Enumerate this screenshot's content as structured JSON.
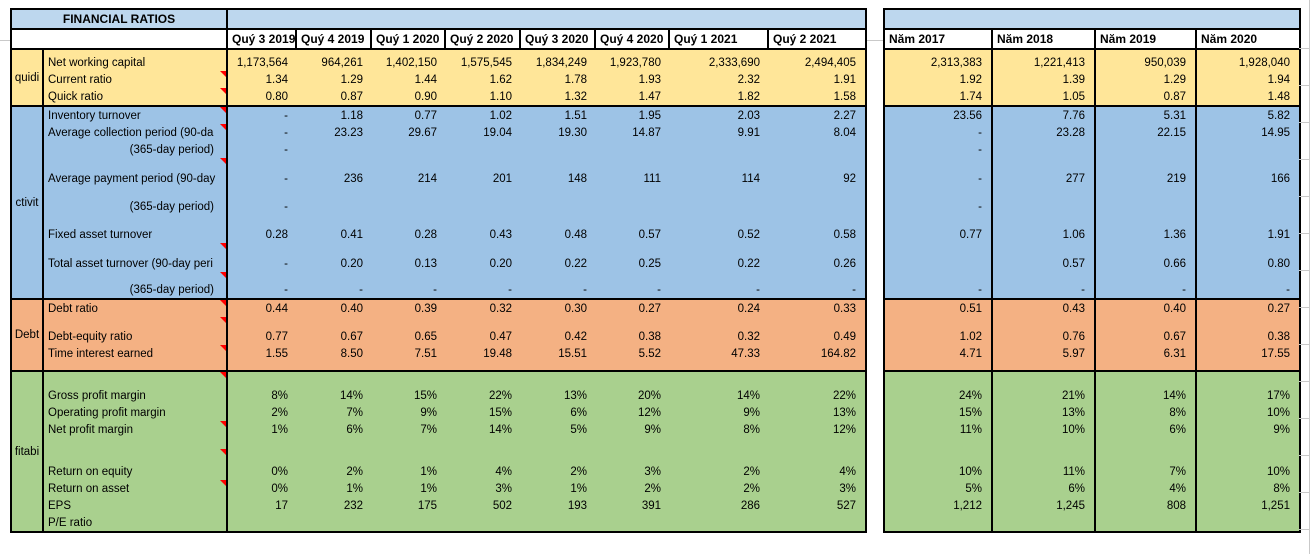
{
  "title": "FINANCIAL RATIOS",
  "colors": {
    "title_bar": "#BDD7EE",
    "yellow": "#FFE699",
    "blue": "#9DC3E6",
    "orange": "#F4B183",
    "green": "#A9D08E",
    "comment_indicator": "#FF0000",
    "gridline": "#C9C9C9",
    "border": "#000000"
  },
  "quarter_columns": [
    "Quý 3 2019",
    "Quý 4 2019",
    "Quý 1 2020",
    "Quý 2 2020",
    "Quý 3 2020",
    "Quý 4 2020",
    "Quý 1 2021",
    "Quý 2 2021"
  ],
  "year_columns": [
    "Năm 2017",
    "Năm 2018",
    "Năm 2019",
    "Năm 2020"
  ],
  "sections": [
    {
      "id": "liquidity",
      "group": "quidi",
      "color": "yellow",
      "rows": [
        {
          "label": "",
          "h": 4
        },
        {
          "label": "Net working capital",
          "h": 17,
          "q": [
            "1,173,564",
            "964,261",
            "1,402,150",
            "1,575,545",
            "1,834,249",
            "1,923,780",
            "2,333,690",
            "2,494,405"
          ],
          "y": [
            "2,313,383",
            "1,221,413",
            "950,039",
            "1,928,040"
          ]
        },
        {
          "label": "Current ratio",
          "h": 17,
          "comment": true,
          "q": [
            "1.34",
            "1.29",
            "1.44",
            "1.62",
            "1.78",
            "1.93",
            "2.32",
            "1.91"
          ],
          "y": [
            "1.92",
            "1.39",
            "1.29",
            "1.94"
          ]
        },
        {
          "label": "Quick ratio",
          "h": 17,
          "comment": true,
          "q": [
            "0.80",
            "0.87",
            "0.90",
            "1.10",
            "1.32",
            "1.47",
            "1.82",
            "1.58"
          ],
          "y": [
            "1.74",
            "1.05",
            "0.87",
            "1.48"
          ]
        }
      ]
    },
    {
      "id": "activity",
      "group": "ctivit",
      "color": "blue",
      "rows": [
        {
          "label": "Inventory turnover",
          "h": 17,
          "comment": true,
          "q": [
            "-",
            "1.18",
            "0.77",
            "1.02",
            "1.51",
            "1.95",
            "2.03",
            "2.27"
          ],
          "y": [
            "23.56",
            "7.76",
            "5.31",
            "5.82"
          ]
        },
        {
          "label": "Average collection period (90-da",
          "h": 17,
          "comment": true,
          "q": [
            "-",
            "23.23",
            "29.67",
            "19.04",
            "19.30",
            "14.87",
            "9.91",
            "8.04"
          ],
          "y": [
            "-",
            "23.28",
            "22.15",
            "14.95"
          ]
        },
        {
          "label": "(365-day period)",
          "h": 17,
          "indent": true,
          "q": [
            "-",
            "",
            "",
            "",
            "",
            "",
            "",
            ""
          ],
          "y": [
            "-",
            "",
            "",
            ""
          ]
        },
        {
          "label": "",
          "h": 11,
          "comment": true
        },
        {
          "label": "Average payment period (90-day",
          "h": 18,
          "q": [
            "-",
            "236",
            "214",
            "201",
            "148",
            "111",
            "114",
            "92"
          ],
          "y": [
            "-",
            "277",
            "219",
            "166"
          ]
        },
        {
          "label": "",
          "h": 11
        },
        {
          "label": "(365-day period)",
          "h": 17,
          "indent": true,
          "q": [
            "-",
            "",
            "",
            "",
            "",
            "",
            "",
            ""
          ],
          "y": [
            "-",
            "",
            "",
            ""
          ]
        },
        {
          "label": "",
          "h": 11
        },
        {
          "label": "Fixed asset turnover",
          "h": 17,
          "q": [
            "0.28",
            "0.41",
            "0.28",
            "0.43",
            "0.48",
            "0.57",
            "0.52",
            "0.58"
          ],
          "y": [
            "0.77",
            "1.06",
            "1.36",
            "1.91"
          ]
        },
        {
          "label": "",
          "h": 11,
          "comment": true
        },
        {
          "label": "Total asset turnover (90-day peri",
          "h": 18,
          "q": [
            "-",
            "0.20",
            "0.13",
            "0.20",
            "0.22",
            "0.25",
            "0.22",
            "0.26"
          ],
          "y": [
            "",
            "0.57",
            "0.66",
            "0.80"
          ]
        },
        {
          "label": "",
          "h": 10,
          "comment": true
        },
        {
          "label": "(365-day period)",
          "h": 16,
          "indent": true,
          "q": [
            "-",
            "-",
            "-",
            "-",
            "-",
            "-",
            "-",
            "-"
          ],
          "y": [
            "-",
            "-",
            "-",
            "-"
          ]
        }
      ]
    },
    {
      "id": "debt",
      "group": "Debt",
      "color": "orange",
      "rows": [
        {
          "label": "Debt ratio",
          "h": 17,
          "comment": true,
          "q": [
            "0.44",
            "0.40",
            "0.39",
            "0.32",
            "0.30",
            "0.27",
            "0.24",
            "0.33"
          ],
          "y": [
            "0.51",
            "0.43",
            "0.40",
            "0.27"
          ]
        },
        {
          "label": "",
          "h": 11,
          "comment": true
        },
        {
          "label": "Debt-equity ratio",
          "h": 17,
          "q": [
            "0.77",
            "0.67",
            "0.65",
            "0.47",
            "0.42",
            "0.38",
            "0.32",
            "0.49"
          ],
          "y": [
            "1.02",
            "0.76",
            "0.67",
            "0.38"
          ]
        },
        {
          "label": "Time interest earned",
          "h": 17,
          "comment": true,
          "q": [
            "1.55",
            "8.50",
            "7.51",
            "19.48",
            "15.51",
            "5.52",
            "47.33",
            "164.82"
          ],
          "y": [
            "4.71",
            "5.97",
            "6.31",
            "17.55"
          ]
        },
        {
          "label": "",
          "h": 8
        }
      ]
    },
    {
      "id": "profitability",
      "group": "fitabi",
      "color": "green",
      "rows": [
        {
          "label": "",
          "h": 15,
          "comment": true
        },
        {
          "label": "Gross profit margin",
          "h": 17,
          "q": [
            "8%",
            "14%",
            "15%",
            "22%",
            "13%",
            "20%",
            "14%",
            "22%"
          ],
          "y": [
            "24%",
            "21%",
            "14%",
            "17%"
          ]
        },
        {
          "label": "Operating profit margin",
          "h": 17,
          "q": [
            "2%",
            "7%",
            "9%",
            "15%",
            "6%",
            "12%",
            "9%",
            "13%"
          ],
          "y": [
            "15%",
            "13%",
            "8%",
            "10%"
          ]
        },
        {
          "label": "Net profit margin",
          "h": 17,
          "comment": true,
          "q": [
            "1%",
            "6%",
            "7%",
            "14%",
            "5%",
            "9%",
            "8%",
            "12%"
          ],
          "y": [
            "11%",
            "10%",
            "6%",
            "9%"
          ]
        },
        {
          "label": "",
          "h": 11
        },
        {
          "label": "",
          "h": 14,
          "comment": true
        },
        {
          "label": "Return on equity",
          "h": 17,
          "q": [
            "0%",
            "2%",
            "1%",
            "4%",
            "2%",
            "3%",
            "2%",
            "4%"
          ],
          "y": [
            "10%",
            "11%",
            "7%",
            "10%"
          ]
        },
        {
          "label": "Return on asset",
          "h": 17,
          "comment": true,
          "q": [
            "0%",
            "1%",
            "1%",
            "3%",
            "1%",
            "2%",
            "2%",
            "3%"
          ],
          "y": [
            "5%",
            "6%",
            "4%",
            "8%"
          ]
        },
        {
          "label": "EPS",
          "h": 17,
          "q": [
            "17",
            "232",
            "175",
            "502",
            "193",
            "391",
            "286",
            "527"
          ],
          "y": [
            "1,212",
            "1,245",
            "808",
            "1,251"
          ]
        },
        {
          "label": "P/E ratio",
          "h": 17,
          "q": [
            "",
            "",
            "",
            "",
            "",
            "",
            "",
            ""
          ],
          "y": [
            "",
            "",
            "",
            ""
          ]
        }
      ]
    }
  ]
}
